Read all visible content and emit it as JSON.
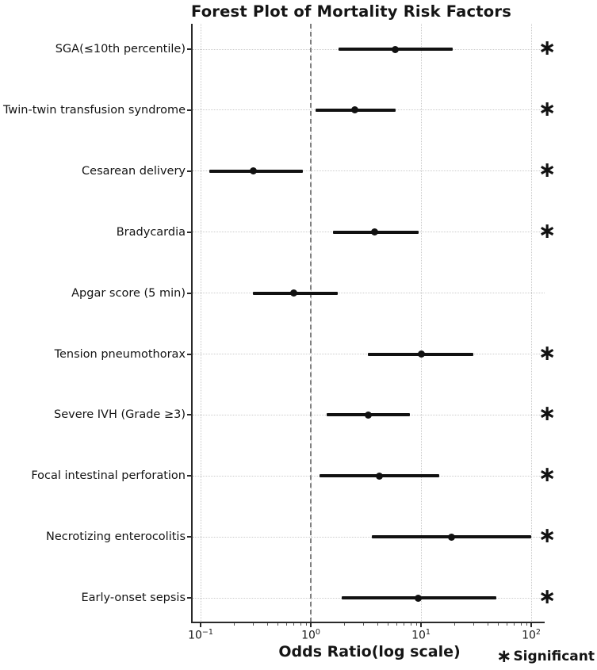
{
  "chart_data": {
    "type": "forest",
    "title": "Forest Plot of Mortality Risk Factors",
    "xlabel": "Odds Ratio(log scale)",
    "x_scale": "log10",
    "x_tick_values": [
      0.1,
      1,
      10,
      100
    ],
    "x_tick_exponents": [
      -1,
      0,
      1,
      2
    ],
    "reference_line": 1,
    "grid": "dotted",
    "legend": {
      "symbol": "∗",
      "label": "Significant"
    },
    "significance_symbol": "∗",
    "rows": [
      {
        "label": "SGA(≤10th percentile)",
        "or": 5.8,
        "ci_low": 1.8,
        "ci_high": 19.5,
        "significant": true
      },
      {
        "label": "Twin-twin transfusion syndrome",
        "or": 2.5,
        "ci_low": 1.1,
        "ci_high": 5.9,
        "significant": true
      },
      {
        "label": "Cesarean delivery",
        "or": 0.3,
        "ci_low": 0.12,
        "ci_high": 0.85,
        "significant": true
      },
      {
        "label": "Bradycardia",
        "or": 3.8,
        "ci_low": 1.6,
        "ci_high": 9.5,
        "significant": true
      },
      {
        "label": "Apgar score (5 min)",
        "or": 0.7,
        "ci_low": 0.3,
        "ci_high": 1.75,
        "significant": false
      },
      {
        "label": "Tension pneumothorax",
        "or": 10,
        "ci_low": 3.3,
        "ci_high": 30,
        "significant": true
      },
      {
        "label": "Severe IVH (Grade ≥3)",
        "or": 3.3,
        "ci_low": 1.4,
        "ci_high": 7.9,
        "significant": true
      },
      {
        "label": "Focal intestinal perforation",
        "or": 4.2,
        "ci_low": 1.2,
        "ci_high": 14.7,
        "significant": true
      },
      {
        "label": "Necrotizing enterocolitis",
        "or": 19,
        "ci_low": 3.6,
        "ci_high": 100,
        "significant": true
      },
      {
        "label": "Early-onset sepsis",
        "or": 9.5,
        "ci_low": 1.9,
        "ci_high": 48,
        "significant": true
      }
    ],
    "colors": {
      "marker": "#111111",
      "ci_bar": "#111111",
      "grid": "#c9c9c9",
      "reference": "#7f7f7f",
      "axis": "#2a2a2a",
      "text": "#141414"
    }
  }
}
